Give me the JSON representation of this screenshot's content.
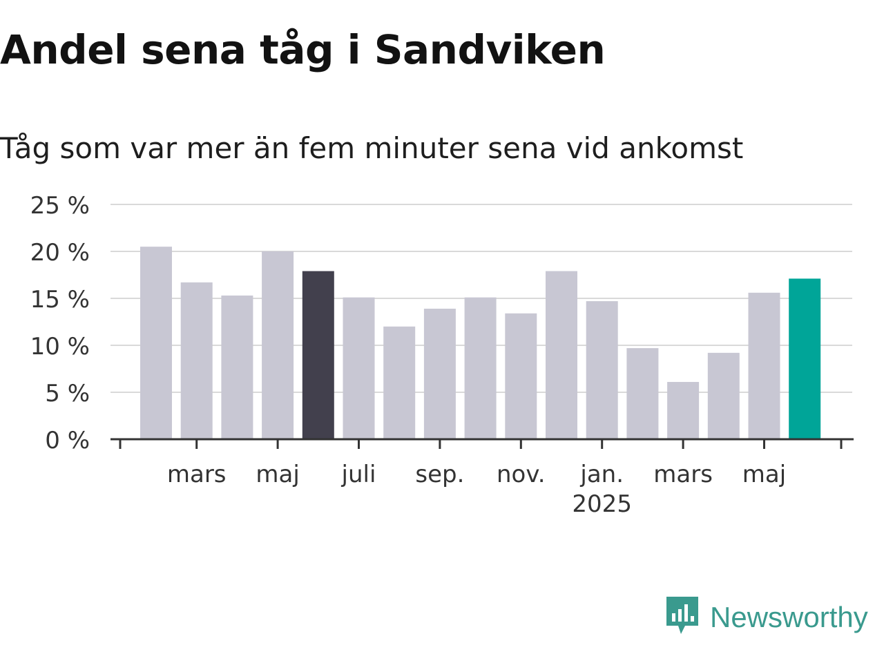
{
  "title": "Andel sena tåg i Sandviken",
  "subtitle": "Tåg som var mer än fem minuter sena vid ankomst",
  "brand": {
    "name": "Newsworthy",
    "icon": "bar-chart-icon",
    "color": "#3a9a8e"
  },
  "colors": {
    "default_bar": "#c8c7d3",
    "highlight_dark": "#42404d",
    "highlight_latest": "#00a598",
    "grid": "#d9d9d9",
    "axis": "#333333"
  },
  "chart_data": {
    "type": "bar",
    "title": "Andel sena tåg i Sandviken",
    "subtitle": "Tåg som var mer än fem minuter sena vid ankomst",
    "categories": [
      "2024-02",
      "2024-03",
      "2024-04",
      "2024-05",
      "2024-06",
      "2024-07",
      "2024-08",
      "2024-09",
      "2024-10",
      "2024-11",
      "2024-12",
      "2025-01",
      "2025-02",
      "2025-03",
      "2025-04",
      "2025-05",
      "2025-06"
    ],
    "values": [
      20.5,
      16.7,
      15.3,
      20.0,
      17.9,
      15.1,
      12.0,
      13.9,
      15.1,
      13.4,
      17.9,
      14.7,
      9.7,
      6.1,
      9.2,
      15.6,
      17.1
    ],
    "highlights": {
      "2024-06": "dark",
      "2025-06": "latest"
    },
    "ylim": [
      0,
      25
    ],
    "yticks": [
      "0 %",
      "5 %",
      "10 %",
      "15 %",
      "20 %",
      "25 %"
    ],
    "xticks": [
      {
        "label": "mars",
        "category": "2024-03"
      },
      {
        "label": "maj",
        "category": "2024-05"
      },
      {
        "label": "juli",
        "category": "2024-07"
      },
      {
        "label": "sep.",
        "category": "2024-09"
      },
      {
        "label": "nov.",
        "category": "2024-11"
      },
      {
        "label": "jan.",
        "sublabel": "2025",
        "category": "2025-01"
      },
      {
        "label": "mars",
        "category": "2025-03"
      },
      {
        "label": "maj",
        "category": "2025-05"
      }
    ],
    "xlabel": "",
    "ylabel": "",
    "grid": true,
    "legend": "none"
  }
}
